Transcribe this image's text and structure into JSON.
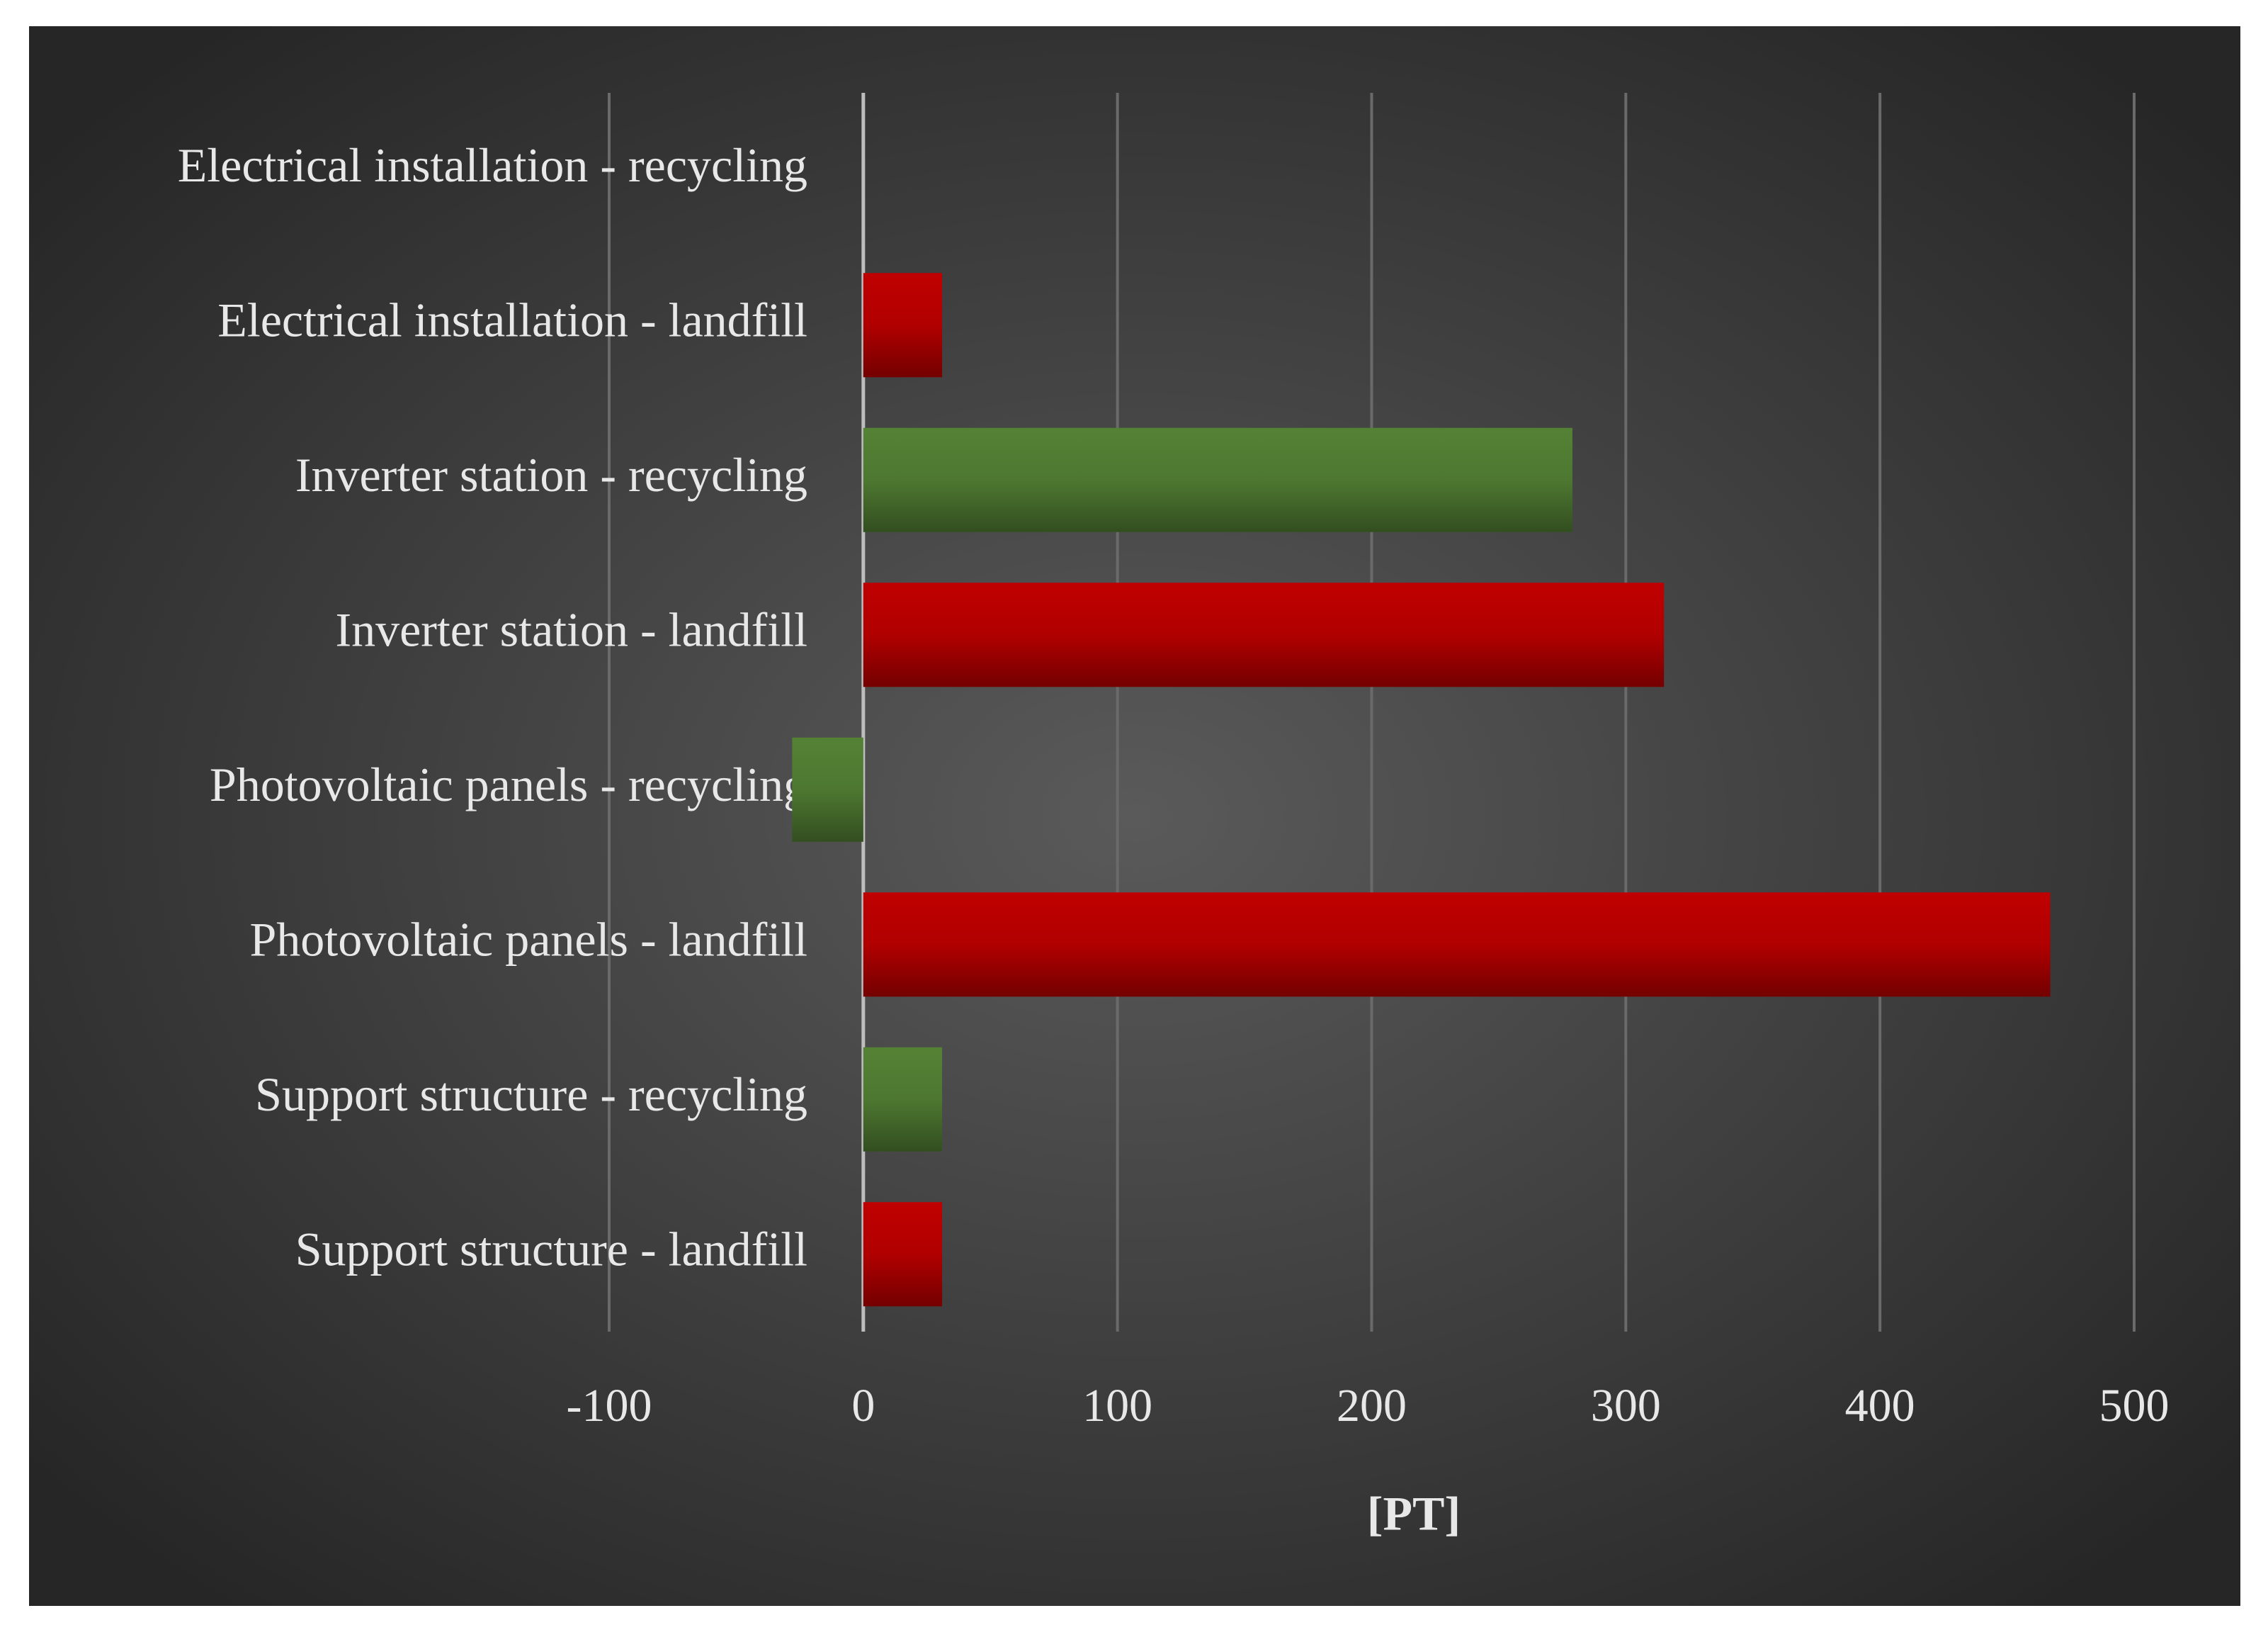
{
  "chart_data": {
    "type": "bar",
    "orientation": "horizontal",
    "x_label": "[PT]",
    "categories": [
      "Electrical installation - recycling",
      "Electrical installation - landfill",
      "Inverter station - recycling",
      "Inverter station - landfill",
      "Photovoltaic panels - recycling",
      "Photovoltaic panels - landfill",
      "Support structure - recycling",
      "Support structure - landfill"
    ],
    "values": [
      0,
      31,
      279,
      315,
      -28,
      467,
      31,
      31
    ],
    "colors": [
      "#548235",
      "#c00000",
      "#548235",
      "#c00000",
      "#548235",
      "#c00000",
      "#548235",
      "#c00000"
    ],
    "xlim": [
      -100,
      500
    ],
    "xticks": [
      -100,
      0,
      100,
      200,
      300,
      400,
      500
    ],
    "grid": true
  }
}
